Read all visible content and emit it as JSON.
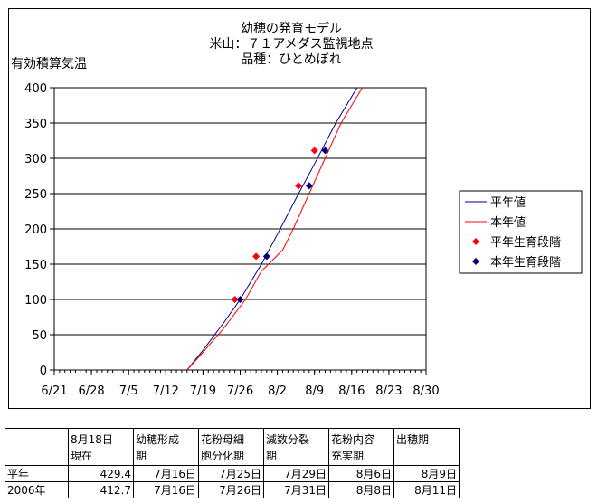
{
  "chart_data": {
    "type": "line",
    "title": [
      "幼穂の発育モデル",
      "米山：７１アメダス監視地点",
      "品種：ひとめぼれ"
    ],
    "ylabel": "有効積算気温",
    "ylim": [
      0,
      400
    ],
    "yticks": [
      "0",
      "50",
      "100",
      "150",
      "200",
      "250",
      "300",
      "350",
      "400"
    ],
    "xlim": [
      "6/21",
      "8/30"
    ],
    "xticks": [
      "6/21",
      "6/28",
      "7/5",
      "7/12",
      "7/19",
      "7/26",
      "8/2",
      "8/9",
      "8/16",
      "8/23",
      "8/30"
    ],
    "grid": "horizontal",
    "legend_position": "right",
    "series": [
      {
        "name": "平年値",
        "kind": "line",
        "color": "#000080",
        "points": [
          [
            "7/16",
            0
          ],
          [
            "7/19",
            28
          ],
          [
            "7/23",
            68
          ],
          [
            "7/26",
            100
          ],
          [
            "7/30",
            150
          ],
          [
            "8/2",
            192
          ],
          [
            "8/6",
            250
          ],
          [
            "8/9",
            292
          ],
          [
            "8/13",
            350
          ],
          [
            "8/17",
            405
          ]
        ]
      },
      {
        "name": "本年値",
        "kind": "line",
        "color": "#ff0000",
        "points": [
          [
            "7/16",
            0
          ],
          [
            "7/19",
            25
          ],
          [
            "7/23",
            60
          ],
          [
            "7/27",
            100
          ],
          [
            "7/30",
            140
          ],
          [
            "8/3",
            170
          ],
          [
            "8/5",
            200
          ],
          [
            "8/8",
            250
          ],
          [
            "8/11",
            300
          ],
          [
            "8/14",
            350
          ],
          [
            "8/18",
            405
          ]
        ]
      },
      {
        "name": "平年生育段階",
        "kind": "marker",
        "color": "#ff0000",
        "points": [
          [
            "7/25",
            100
          ],
          [
            "7/29",
            161
          ],
          [
            "8/6",
            261
          ],
          [
            "8/9",
            311
          ]
        ]
      },
      {
        "name": "本年生育段階",
        "kind": "marker",
        "color": "#000080",
        "points": [
          [
            "7/26",
            100
          ],
          [
            "7/31",
            161
          ],
          [
            "8/8",
            261
          ],
          [
            "8/11",
            311
          ]
        ]
      }
    ]
  },
  "table": {
    "header": [
      "",
      "8月18日\n現在",
      "幼穂形成\n期",
      "花粉母細\n胞分化期",
      "減数分裂\n期",
      "花粉内容\n充実期",
      "出穂期"
    ],
    "rows": [
      [
        "平年",
        "429.4",
        "7月16日",
        "7月25日",
        "7月29日",
        "8月6日",
        "8月9日"
      ],
      [
        "2006年",
        "412.7",
        "7月16日",
        "7月26日",
        "7月31日",
        "8月8日",
        "8月11日"
      ]
    ]
  }
}
